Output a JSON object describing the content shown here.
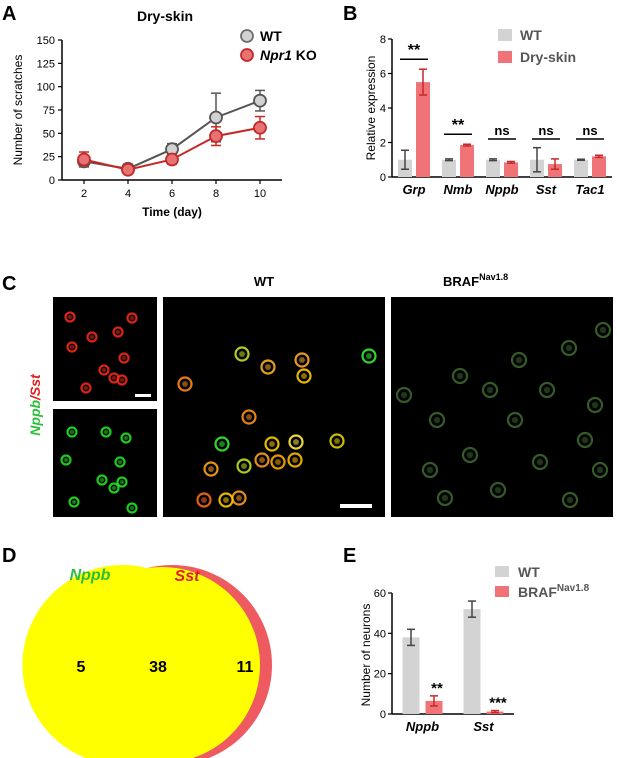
{
  "colors": {
    "wt": "#9e9e9e",
    "wt_fill": "#d2d2d2",
    "ko": "#c62828",
    "ko_fill": "#e57373",
    "bar_wt": "#d3d3d3",
    "bar_red": "#f07378",
    "err_red": "#c62828",
    "venn_green": "#8fe08a",
    "venn_red": "#ee5a5f",
    "venn_yellow": "#ffff00",
    "label_green": "#2bbf3a",
    "label_red": "#e01e1e"
  },
  "panels": {
    "A": {
      "letter": "A"
    },
    "B": {
      "letter": "B"
    },
    "C": {
      "letter": "C",
      "wt_label": "WT",
      "braf_label": "BRAF",
      "braf_sup": "Nav1.8",
      "stain_green": "Nppb",
      "stain_sep": "/",
      "stain_red": "Sst"
    },
    "D": {
      "letter": "D",
      "set_left": "Nppb",
      "set_right": "Sst",
      "only_left": "5",
      "overlap": "38",
      "only_right": "11"
    },
    "E": {
      "letter": "E"
    }
  },
  "chart_data": [
    {
      "panel": "A",
      "type": "line",
      "title": "Dry-skin",
      "xlabel": "Time (day)",
      "ylabel": "Number of scratches",
      "x": [
        2,
        4,
        6,
        8,
        10
      ],
      "xlim": [
        1,
        11
      ],
      "ylim": [
        0,
        150
      ],
      "yticks": [
        0,
        25,
        50,
        75,
        100,
        125,
        150
      ],
      "legend_position": "top-right",
      "series": [
        {
          "name": "WT",
          "name_prefix": "",
          "name_italic": "",
          "name_suffix": "",
          "values": [
            20,
            12,
            33,
            67,
            85
          ],
          "errors": [
            5,
            5,
            6,
            26,
            11
          ]
        },
        {
          "name": "Npr1 KO",
          "name_prefix": "",
          "name_italic": "Npr1",
          "name_suffix": " KO",
          "values": [
            22,
            11,
            22,
            47,
            56
          ],
          "errors": [
            8,
            4,
            5,
            10,
            12
          ]
        }
      ]
    },
    {
      "panel": "B",
      "type": "bar",
      "ylabel": "Relative expression",
      "categories": [
        "Grp",
        "Nmb",
        "Nppb",
        "Sst",
        "Tac1"
      ],
      "ylim": [
        0,
        8
      ],
      "yticks": [
        0,
        2,
        4,
        6,
        8
      ],
      "legend_position": "top-right",
      "series": [
        {
          "name": "WT",
          "values": [
            1.0,
            1.0,
            1.0,
            1.0,
            1.0
          ],
          "errors": [
            0.55,
            0.05,
            0.05,
            0.7,
            0.03
          ]
        },
        {
          "name": "Dry-skin",
          "values": [
            5.5,
            1.85,
            0.85,
            0.75,
            1.2
          ],
          "errors": [
            0.75,
            0.05,
            0.05,
            0.3,
            0.06
          ]
        }
      ],
      "significance": [
        "**",
        "**",
        "ns",
        "ns",
        "ns"
      ]
    },
    {
      "panel": "E",
      "type": "bar",
      "ylabel": "Number of neurons",
      "categories": [
        "Nppb",
        "Sst"
      ],
      "ylim": [
        0,
        60
      ],
      "yticks": [
        0,
        20,
        40,
        60
      ],
      "legend_position": "top-right",
      "series": [
        {
          "name": "WT",
          "name_main": "WT",
          "name_sup": "",
          "values": [
            38,
            52
          ],
          "errors": [
            4,
            4
          ]
        },
        {
          "name": "BRAFNav1.8",
          "name_main": "BRAF",
          "name_sup": "Nav1.8",
          "values": [
            6.5,
            1.2
          ],
          "errors": [
            2.5,
            0.5
          ]
        }
      ],
      "significance": [
        "**",
        "***"
      ]
    }
  ]
}
